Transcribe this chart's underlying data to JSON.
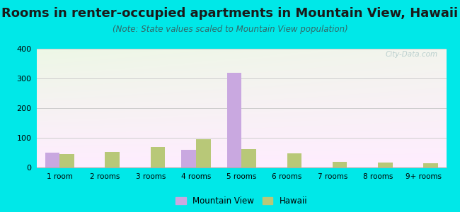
{
  "title": "Rooms in renter-occupied apartments in Mountain View, Hawaii",
  "subtitle": "(Note: State values scaled to Mountain View population)",
  "categories": [
    "1 room",
    "2 rooms",
    "3 rooms",
    "4 rooms",
    "5 rooms",
    "6 rooms",
    "7 rooms",
    "8 rooms",
    "9+ rooms"
  ],
  "mountain_view": [
    50,
    0,
    0,
    60,
    318,
    0,
    0,
    0,
    0
  ],
  "hawaii": [
    45,
    52,
    70,
    95,
    62,
    48,
    18,
    17,
    14
  ],
  "mv_color": "#c9a8e0",
  "hi_color": "#b8c878",
  "ylim": [
    0,
    400
  ],
  "yticks": [
    0,
    100,
    200,
    300,
    400
  ],
  "background_outer": "#00e8e8",
  "grid_color": "#cccccc",
  "title_fontsize": 13,
  "subtitle_fontsize": 8.5,
  "legend_mv": "Mountain View",
  "legend_hi": "Hawaii",
  "watermark": "City-Data.com",
  "bar_width": 0.32
}
